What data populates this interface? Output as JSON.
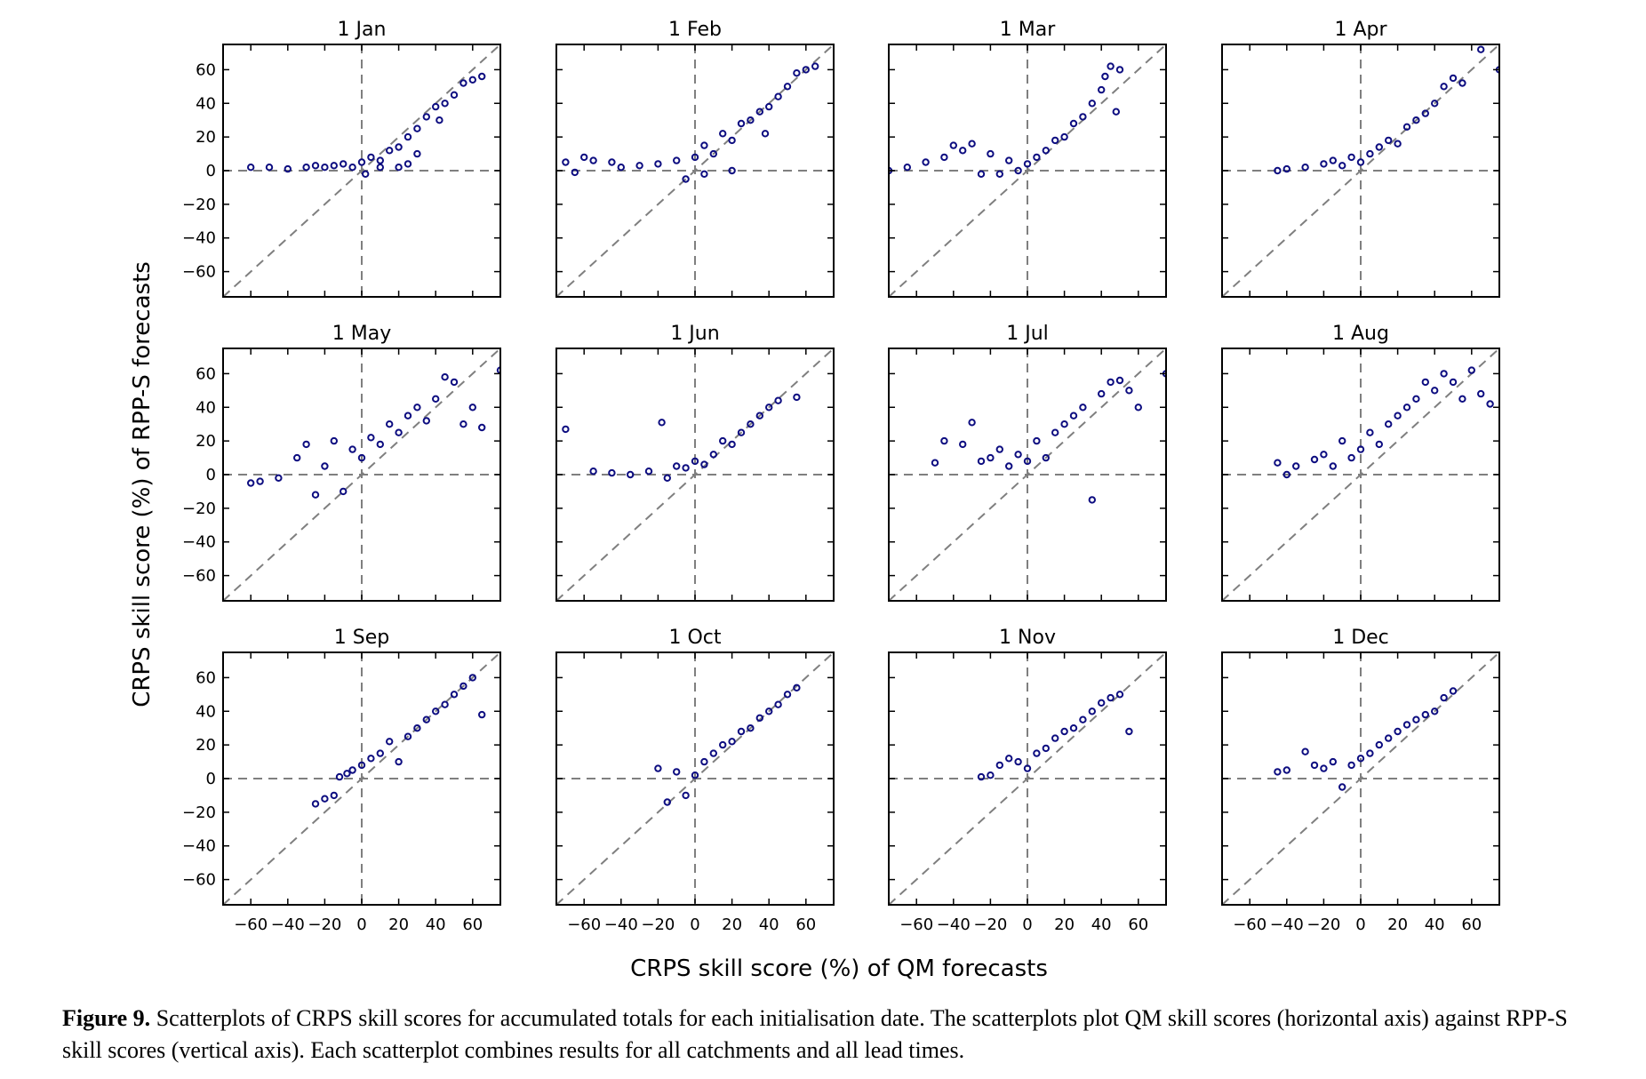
{
  "figure": {
    "xlabel": "CRPS skill score  (%) of QM forecasts",
    "ylabel": "CRPS skill score  (%) of RPP-S forecasts",
    "caption_label": "Figure 9.",
    "caption_text": " Scatterplots of CRPS skill scores for accumulated totals for each initialisation date. The scatterplots plot QM skill scores (horizontal axis) against RPP-S skill scores (vertical axis). Each scatterplot combines results for all catchments and all lead times."
  },
  "colors": {
    "points": "#0d0d80",
    "reference_lines": "#7f7f7f",
    "axes": "#000000"
  },
  "chart_data": [
    {
      "type": "scatter",
      "title": "1 Jan",
      "xlim": [
        -75,
        75
      ],
      "ylim": [
        -75,
        75
      ],
      "xticks": [
        -60,
        -40,
        -20,
        0,
        20,
        40,
        60
      ],
      "yticks": [
        -60,
        -40,
        -20,
        0,
        20,
        40,
        60
      ],
      "reference_lines": [
        "y=x",
        "x=0",
        "y=0"
      ],
      "points": [
        [
          -60,
          2
        ],
        [
          -50,
          2
        ],
        [
          -40,
          1
        ],
        [
          -30,
          2
        ],
        [
          -25,
          3
        ],
        [
          -20,
          2
        ],
        [
          -15,
          3
        ],
        [
          -10,
          4
        ],
        [
          -5,
          2
        ],
        [
          0,
          5
        ],
        [
          2,
          -2
        ],
        [
          5,
          8
        ],
        [
          10,
          6
        ],
        [
          10,
          2
        ],
        [
          15,
          12
        ],
        [
          20,
          14
        ],
        [
          20,
          2
        ],
        [
          25,
          20
        ],
        [
          25,
          4
        ],
        [
          30,
          25
        ],
        [
          30,
          10
        ],
        [
          35,
          32
        ],
        [
          40,
          38
        ],
        [
          42,
          30
        ],
        [
          45,
          40
        ],
        [
          50,
          45
        ],
        [
          55,
          52
        ],
        [
          60,
          54
        ],
        [
          65,
          56
        ]
      ]
    },
    {
      "type": "scatter",
      "title": "1 Feb",
      "xlim": [
        -75,
        75
      ],
      "ylim": [
        -75,
        75
      ],
      "xticks": [
        -60,
        -40,
        -20,
        0,
        20,
        40,
        60
      ],
      "yticks": [
        -60,
        -40,
        -20,
        0,
        20,
        40,
        60
      ],
      "reference_lines": [
        "y=x",
        "x=0",
        "y=0"
      ],
      "points": [
        [
          -70,
          5
        ],
        [
          -65,
          -1
        ],
        [
          -60,
          8
        ],
        [
          -55,
          6
        ],
        [
          -45,
          5
        ],
        [
          -40,
          2
        ],
        [
          -30,
          3
        ],
        [
          -20,
          4
        ],
        [
          -10,
          6
        ],
        [
          -5,
          -5
        ],
        [
          0,
          8
        ],
        [
          5,
          -2
        ],
        [
          5,
          15
        ],
        [
          10,
          10
        ],
        [
          15,
          22
        ],
        [
          20,
          18
        ],
        [
          20,
          0
        ],
        [
          25,
          28
        ],
        [
          30,
          30
        ],
        [
          35,
          35
        ],
        [
          38,
          22
        ],
        [
          40,
          38
        ],
        [
          45,
          44
        ],
        [
          50,
          50
        ],
        [
          55,
          58
        ],
        [
          60,
          60
        ],
        [
          65,
          62
        ]
      ]
    },
    {
      "type": "scatter",
      "title": "1 Mar",
      "xlim": [
        -75,
        75
      ],
      "ylim": [
        -75,
        75
      ],
      "xticks": [
        -60,
        -40,
        -20,
        0,
        20,
        40,
        60
      ],
      "yticks": [
        -60,
        -40,
        -20,
        0,
        20,
        40,
        60
      ],
      "reference_lines": [
        "y=x",
        "x=0",
        "y=0"
      ],
      "points": [
        [
          -75,
          0
        ],
        [
          -65,
          2
        ],
        [
          -55,
          5
        ],
        [
          -45,
          8
        ],
        [
          -40,
          15
        ],
        [
          -35,
          12
        ],
        [
          -30,
          16
        ],
        [
          -25,
          -2
        ],
        [
          -20,
          10
        ],
        [
          -15,
          -2
        ],
        [
          -10,
          6
        ],
        [
          -5,
          0
        ],
        [
          0,
          4
        ],
        [
          5,
          8
        ],
        [
          10,
          12
        ],
        [
          15,
          18
        ],
        [
          20,
          20
        ],
        [
          25,
          28
        ],
        [
          30,
          32
        ],
        [
          35,
          40
        ],
        [
          40,
          48
        ],
        [
          42,
          56
        ],
        [
          45,
          62
        ],
        [
          50,
          60
        ],
        [
          48,
          35
        ]
      ]
    },
    {
      "type": "scatter",
      "title": "1 Apr",
      "xlim": [
        -75,
        75
      ],
      "ylim": [
        -75,
        75
      ],
      "xticks": [
        -60,
        -40,
        -20,
        0,
        20,
        40,
        60
      ],
      "yticks": [
        -60,
        -40,
        -20,
        0,
        20,
        40,
        60
      ],
      "reference_lines": [
        "y=x",
        "x=0",
        "y=0"
      ],
      "points": [
        [
          -45,
          0
        ],
        [
          -40,
          1
        ],
        [
          -30,
          2
        ],
        [
          -20,
          4
        ],
        [
          -15,
          6
        ],
        [
          -10,
          3
        ],
        [
          -5,
          8
        ],
        [
          0,
          5
        ],
        [
          5,
          10
        ],
        [
          10,
          14
        ],
        [
          15,
          18
        ],
        [
          20,
          16
        ],
        [
          25,
          26
        ],
        [
          30,
          30
        ],
        [
          35,
          34
        ],
        [
          40,
          40
        ],
        [
          45,
          50
        ],
        [
          50,
          55
        ],
        [
          55,
          52
        ],
        [
          65,
          72
        ],
        [
          75,
          60
        ]
      ]
    },
    {
      "type": "scatter",
      "title": "1 May",
      "xlim": [
        -75,
        75
      ],
      "ylim": [
        -75,
        75
      ],
      "xticks": [
        -60,
        -40,
        -20,
        0,
        20,
        40,
        60
      ],
      "yticks": [
        -60,
        -40,
        -20,
        0,
        20,
        40,
        60
      ],
      "reference_lines": [
        "y=x",
        "x=0",
        "y=0"
      ],
      "points": [
        [
          -60,
          -5
        ],
        [
          -55,
          -4
        ],
        [
          -45,
          -2
        ],
        [
          -35,
          10
        ],
        [
          -30,
          18
        ],
        [
          -25,
          -12
        ],
        [
          -20,
          5
        ],
        [
          -15,
          20
        ],
        [
          -10,
          -10
        ],
        [
          -5,
          15
        ],
        [
          0,
          10
        ],
        [
          5,
          22
        ],
        [
          10,
          18
        ],
        [
          15,
          30
        ],
        [
          20,
          25
        ],
        [
          25,
          35
        ],
        [
          30,
          40
        ],
        [
          35,
          32
        ],
        [
          40,
          45
        ],
        [
          45,
          58
        ],
        [
          50,
          55
        ],
        [
          55,
          30
        ],
        [
          60,
          40
        ],
        [
          65,
          28
        ],
        [
          75,
          62
        ]
      ]
    },
    {
      "type": "scatter",
      "title": "1 Jun",
      "xlim": [
        -75,
        75
      ],
      "ylim": [
        -75,
        75
      ],
      "xticks": [
        -60,
        -40,
        -20,
        0,
        20,
        40,
        60
      ],
      "yticks": [
        -60,
        -40,
        -20,
        0,
        20,
        40,
        60
      ],
      "reference_lines": [
        "y=x",
        "x=0",
        "y=0"
      ],
      "points": [
        [
          -70,
          27
        ],
        [
          -55,
          2
        ],
        [
          -45,
          1
        ],
        [
          -35,
          0
        ],
        [
          -25,
          2
        ],
        [
          -18,
          31
        ],
        [
          -15,
          -2
        ],
        [
          -10,
          5
        ],
        [
          -5,
          4
        ],
        [
          0,
          8
        ],
        [
          5,
          6
        ],
        [
          10,
          12
        ],
        [
          15,
          20
        ],
        [
          20,
          18
        ],
        [
          25,
          25
        ],
        [
          30,
          30
        ],
        [
          35,
          35
        ],
        [
          40,
          40
        ],
        [
          45,
          44
        ],
        [
          55,
          46
        ]
      ]
    },
    {
      "type": "scatter",
      "title": "1 Jul",
      "xlim": [
        -75,
        75
      ],
      "ylim": [
        -75,
        75
      ],
      "xticks": [
        -60,
        -40,
        -20,
        0,
        20,
        40,
        60
      ],
      "yticks": [
        -60,
        -40,
        -20,
        0,
        20,
        40,
        60
      ],
      "reference_lines": [
        "y=x",
        "x=0",
        "y=0"
      ],
      "points": [
        [
          -50,
          7
        ],
        [
          -45,
          20
        ],
        [
          -35,
          18
        ],
        [
          -30,
          31
        ],
        [
          -25,
          8
        ],
        [
          -20,
          10
        ],
        [
          -15,
          15
        ],
        [
          -10,
          5
        ],
        [
          -5,
          12
        ],
        [
          0,
          8
        ],
        [
          5,
          20
        ],
        [
          10,
          10
        ],
        [
          15,
          25
        ],
        [
          20,
          30
        ],
        [
          25,
          35
        ],
        [
          30,
          40
        ],
        [
          35,
          -15
        ],
        [
          40,
          48
        ],
        [
          45,
          55
        ],
        [
          50,
          56
        ],
        [
          55,
          50
        ],
        [
          60,
          40
        ],
        [
          75,
          60
        ]
      ]
    },
    {
      "type": "scatter",
      "title": "1 Aug",
      "xlim": [
        -75,
        75
      ],
      "ylim": [
        -75,
        75
      ],
      "xticks": [
        -60,
        -40,
        -20,
        0,
        20,
        40,
        60
      ],
      "yticks": [
        -60,
        -40,
        -20,
        0,
        20,
        40,
        60
      ],
      "reference_lines": [
        "y=x",
        "x=0",
        "y=0"
      ],
      "points": [
        [
          -45,
          7
        ],
        [
          -40,
          0
        ],
        [
          -35,
          5
        ],
        [
          -25,
          9
        ],
        [
          -20,
          12
        ],
        [
          -15,
          5
        ],
        [
          -10,
          20
        ],
        [
          -5,
          10
        ],
        [
          0,
          15
        ],
        [
          5,
          25
        ],
        [
          10,
          18
        ],
        [
          15,
          30
        ],
        [
          20,
          35
        ],
        [
          25,
          40
        ],
        [
          30,
          45
        ],
        [
          35,
          55
        ],
        [
          40,
          50
        ],
        [
          45,
          60
        ],
        [
          50,
          55
        ],
        [
          55,
          45
        ],
        [
          60,
          62
        ],
        [
          65,
          48
        ],
        [
          70,
          42
        ]
      ]
    },
    {
      "type": "scatter",
      "title": "1 Sep",
      "xlim": [
        -75,
        75
      ],
      "ylim": [
        -75,
        75
      ],
      "xticks": [
        -60,
        -40,
        -20,
        0,
        20,
        40,
        60
      ],
      "yticks": [
        -60,
        -40,
        -20,
        0,
        20,
        40,
        60
      ],
      "reference_lines": [
        "y=x",
        "x=0",
        "y=0"
      ],
      "points": [
        [
          -25,
          -15
        ],
        [
          -20,
          -12
        ],
        [
          -15,
          -10
        ],
        [
          -12,
          1
        ],
        [
          -8,
          3
        ],
        [
          -5,
          5
        ],
        [
          0,
          8
        ],
        [
          5,
          12
        ],
        [
          10,
          15
        ],
        [
          15,
          22
        ],
        [
          20,
          10
        ],
        [
          25,
          25
        ],
        [
          30,
          30
        ],
        [
          35,
          35
        ],
        [
          40,
          40
        ],
        [
          45,
          44
        ],
        [
          50,
          50
        ],
        [
          55,
          55
        ],
        [
          60,
          60
        ],
        [
          65,
          38
        ]
      ]
    },
    {
      "type": "scatter",
      "title": "1 Oct",
      "xlim": [
        -75,
        75
      ],
      "ylim": [
        -75,
        75
      ],
      "xticks": [
        -60,
        -40,
        -20,
        0,
        20,
        40,
        60
      ],
      "yticks": [
        -60,
        -40,
        -20,
        0,
        20,
        40,
        60
      ],
      "reference_lines": [
        "y=x",
        "x=0",
        "y=0"
      ],
      "points": [
        [
          -20,
          6
        ],
        [
          -15,
          -14
        ],
        [
          -10,
          4
        ],
        [
          -5,
          -10
        ],
        [
          0,
          2
        ],
        [
          5,
          10
        ],
        [
          10,
          15
        ],
        [
          15,
          20
        ],
        [
          20,
          22
        ],
        [
          25,
          28
        ],
        [
          30,
          30
        ],
        [
          35,
          36
        ],
        [
          40,
          40
        ],
        [
          45,
          44
        ],
        [
          50,
          50
        ],
        [
          55,
          54
        ]
      ]
    },
    {
      "type": "scatter",
      "title": "1 Nov",
      "xlim": [
        -75,
        75
      ],
      "ylim": [
        -75,
        75
      ],
      "xticks": [
        -60,
        -40,
        -20,
        0,
        20,
        40,
        60
      ],
      "yticks": [
        -60,
        -40,
        -20,
        0,
        20,
        40,
        60
      ],
      "reference_lines": [
        "y=x",
        "x=0",
        "y=0"
      ],
      "points": [
        [
          -25,
          1
        ],
        [
          -20,
          2
        ],
        [
          -15,
          8
        ],
        [
          -10,
          12
        ],
        [
          -5,
          10
        ],
        [
          0,
          6
        ],
        [
          5,
          15
        ],
        [
          10,
          18
        ],
        [
          15,
          24
        ],
        [
          20,
          28
        ],
        [
          25,
          30
        ],
        [
          30,
          35
        ],
        [
          35,
          40
        ],
        [
          40,
          45
        ],
        [
          45,
          48
        ],
        [
          50,
          50
        ],
        [
          55,
          28
        ]
      ]
    },
    {
      "type": "scatter",
      "title": "1 Dec",
      "xlim": [
        -75,
        75
      ],
      "ylim": [
        -75,
        75
      ],
      "xticks": [
        -60,
        -40,
        -20,
        0,
        20,
        40,
        60
      ],
      "yticks": [
        -60,
        -40,
        -20,
        0,
        20,
        40,
        60
      ],
      "reference_lines": [
        "y=x",
        "x=0",
        "y=0"
      ],
      "points": [
        [
          -45,
          4
        ],
        [
          -40,
          5
        ],
        [
          -30,
          16
        ],
        [
          -25,
          8
        ],
        [
          -20,
          6
        ],
        [
          -15,
          10
        ],
        [
          -10,
          -5
        ],
        [
          -5,
          8
        ],
        [
          0,
          12
        ],
        [
          5,
          15
        ],
        [
          10,
          20
        ],
        [
          15,
          24
        ],
        [
          20,
          28
        ],
        [
          25,
          32
        ],
        [
          30,
          35
        ],
        [
          35,
          38
        ],
        [
          40,
          40
        ],
        [
          45,
          48
        ],
        [
          50,
          52
        ]
      ]
    }
  ]
}
